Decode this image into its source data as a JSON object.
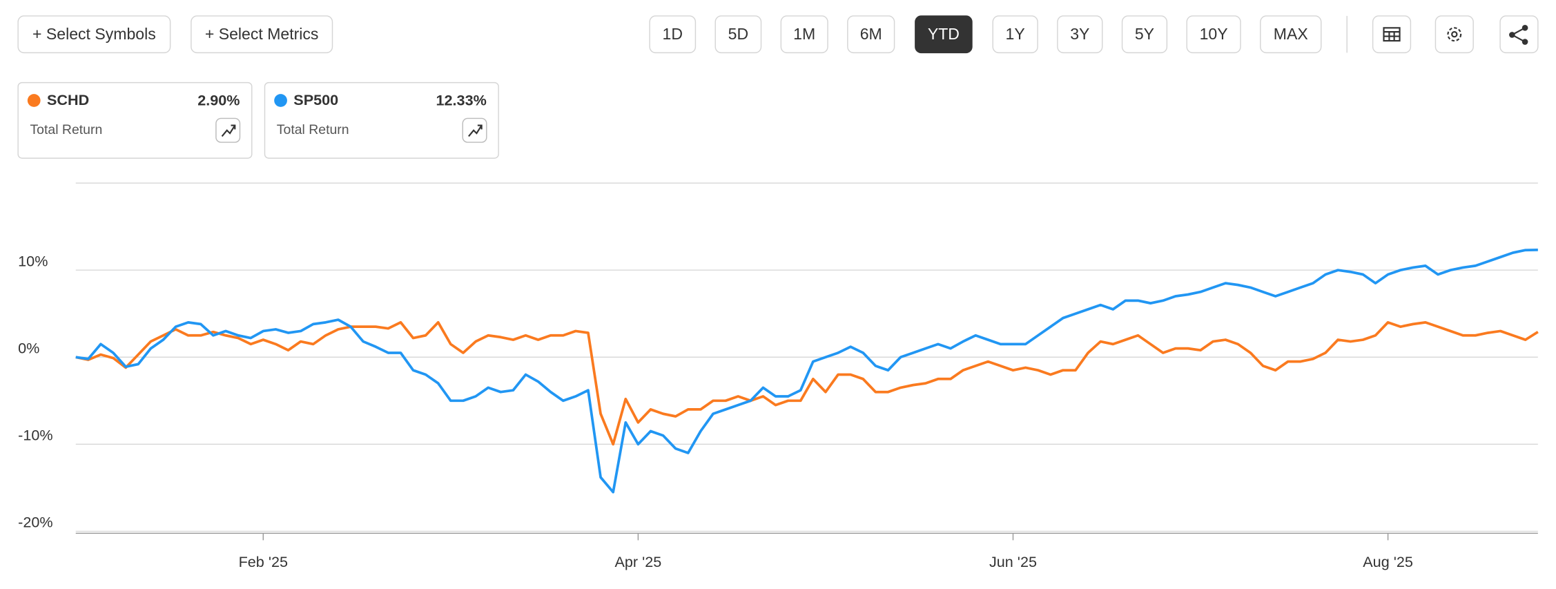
{
  "toolbar": {
    "left_buttons": [
      "+ Select Symbols",
      "+ Select Metrics"
    ],
    "ranges": [
      "1D",
      "5D",
      "1M",
      "6M",
      "YTD",
      "1Y",
      "3Y",
      "5Y",
      "10Y",
      "MAX"
    ],
    "active_range": "YTD"
  },
  "chart_data": {
    "type": "line",
    "metric": "Total Return",
    "categories": [
      null,
      null,
      null,
      null,
      null,
      null,
      null,
      null,
      null,
      null,
      null,
      null,
      null,
      null,
      null,
      "Feb '25",
      null,
      null,
      null,
      null,
      null,
      null,
      null,
      null,
      null,
      null,
      null,
      null,
      null,
      null,
      null,
      null,
      null,
      null,
      null,
      null,
      null,
      null,
      null,
      null,
      null,
      null,
      null,
      null,
      null,
      "Apr '25",
      null,
      null,
      null,
      null,
      null,
      null,
      null,
      null,
      null,
      null,
      null,
      null,
      null,
      null,
      null,
      null,
      null,
      null,
      null,
      null,
      null,
      null,
      null,
      null,
      null,
      null,
      null,
      null,
      null,
      "Jun '25",
      null,
      null,
      null,
      null,
      null,
      null,
      null,
      null,
      null,
      null,
      null,
      null,
      null,
      null,
      null,
      null,
      null,
      null,
      null,
      null,
      null,
      null,
      null,
      null,
      null,
      null,
      null,
      null,
      null,
      "Aug '25",
      null,
      null,
      null,
      null,
      null,
      null,
      null,
      null,
      null,
      null,
      null,
      null
    ],
    "series": [
      {
        "name": "SCHD",
        "color": "#fa7a1f",
        "summary_label": "2.90%",
        "values": [
          0,
          -0.3,
          0.3,
          -0.1,
          -1.2,
          0.3,
          1.8,
          2.5,
          3.2,
          2.5,
          2.5,
          2.9,
          2.5,
          2.2,
          1.5,
          2.0,
          1.5,
          0.8,
          1.8,
          1.5,
          2.5,
          3.2,
          3.5,
          3.5,
          3.5,
          3.3,
          4.0,
          2.2,
          2.5,
          4.0,
          1.5,
          0.5,
          1.8,
          2.5,
          2.3,
          2.0,
          2.5,
          2.0,
          2.5,
          2.5,
          3.0,
          2.8,
          -6.5,
          -10.0,
          -4.8,
          -7.5,
          -6.0,
          -6.5,
          -6.8,
          -6.0,
          -6.0,
          -5.0,
          -5.0,
          -4.5,
          -5.0,
          -4.5,
          -5.5,
          -5.0,
          -5.0,
          -2.5,
          -4.0,
          -2.0,
          -2.0,
          -2.5,
          -4.0,
          -4.0,
          -3.5,
          -3.2,
          -3.0,
          -2.5,
          -2.5,
          -1.5,
          -1.0,
          -0.5,
          -1.0,
          -1.5,
          -1.2,
          -1.5,
          -2.0,
          -1.5,
          -1.5,
          0.5,
          1.8,
          1.5,
          2.0,
          2.5,
          1.5,
          0.5,
          1.0,
          1.0,
          0.8,
          1.8,
          2.0,
          1.5,
          0.5,
          -1.0,
          -1.5,
          -0.5,
          -0.5,
          -0.2,
          0.5,
          2.0,
          1.8,
          2.0,
          2.5,
          4.0,
          3.5,
          3.8,
          4.0,
          3.5,
          3.0,
          2.5,
          2.5,
          2.8,
          3.0,
          2.5,
          2.0,
          2.9
        ]
      },
      {
        "name": "SP500",
        "color": "#2196f3",
        "summary_label": "12.33%",
        "values": [
          0,
          -0.2,
          1.5,
          0.5,
          -1.1,
          -0.8,
          1.0,
          2.0,
          3.5,
          4.0,
          3.8,
          2.5,
          3.0,
          2.5,
          2.2,
          3.0,
          3.2,
          2.8,
          3.0,
          3.8,
          4.0,
          4.3,
          3.5,
          1.8,
          1.2,
          0.5,
          0.5,
          -1.5,
          -2.0,
          -3.0,
          -5.0,
          -5.0,
          -4.5,
          -3.5,
          -4.0,
          -3.8,
          -2.0,
          -2.8,
          -4.0,
          -5.0,
          -4.5,
          -3.8,
          -13.8,
          -15.5,
          -7.5,
          -10.0,
          -8.5,
          -9.0,
          -10.5,
          -11.0,
          -8.5,
          -6.5,
          -6.0,
          -5.5,
          -5.0,
          -3.5,
          -4.5,
          -4.5,
          -3.8,
          -0.5,
          0.0,
          0.5,
          1.2,
          0.5,
          -1.0,
          -1.5,
          0.0,
          0.5,
          1.0,
          1.5,
          1.0,
          1.8,
          2.5,
          2.0,
          1.5,
          1.5,
          1.5,
          2.5,
          3.5,
          4.5,
          5.0,
          5.5,
          6.0,
          5.5,
          6.5,
          6.5,
          6.2,
          6.5,
          7.0,
          7.2,
          7.5,
          8.0,
          8.5,
          8.3,
          8.0,
          7.5,
          7.0,
          7.5,
          8.0,
          8.5,
          9.5,
          10.0,
          9.8,
          9.5,
          8.5,
          9.5,
          10.0,
          10.3,
          10.5,
          9.5,
          10.0,
          10.3,
          10.5,
          11.0,
          11.5,
          12.0,
          12.3,
          12.33
        ]
      }
    ],
    "ylim": [
      -20,
      20
    ],
    "yticks": [
      {
        "value": -20,
        "label": "-20%"
      },
      {
        "value": -10,
        "label": "-10%"
      },
      {
        "value": 0,
        "label": "0%"
      },
      {
        "value": 10,
        "label": "10%"
      }
    ],
    "grid": true
  }
}
